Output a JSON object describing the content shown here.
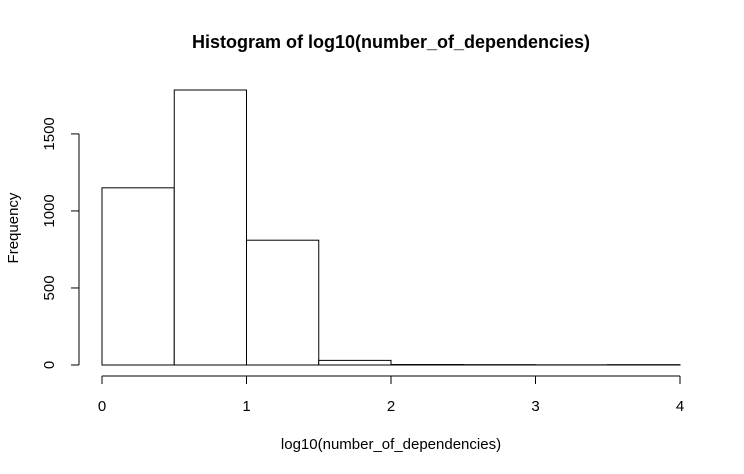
{
  "chart_data": {
    "type": "bar",
    "title": "Histogram of log10(number_of_dependencies)",
    "xlabel": "log10(number_of_dependencies)",
    "ylabel": "Frequency",
    "bins": [
      {
        "start": 0.0,
        "end": 0.5,
        "value": 1150
      },
      {
        "start": 0.5,
        "end": 1.0,
        "value": 1785
      },
      {
        "start": 1.0,
        "end": 1.5,
        "value": 810
      },
      {
        "start": 1.5,
        "end": 2.0,
        "value": 30
      },
      {
        "start": 2.0,
        "end": 2.5,
        "value": 3
      },
      {
        "start": 2.5,
        "end": 3.0,
        "value": 2
      },
      {
        "start": 3.0,
        "end": 3.5,
        "value": 1
      },
      {
        "start": 3.5,
        "end": 4.0,
        "value": 2
      }
    ],
    "xlim": [
      0,
      4
    ],
    "ylim": [
      0,
      1785
    ],
    "xticks": [
      0,
      1,
      2,
      3,
      4
    ],
    "xtick_labels": [
      "0",
      "1",
      "2",
      "3",
      "4"
    ],
    "yticks": [
      0,
      500,
      1000,
      1500
    ],
    "ytick_labels": [
      "0",
      "500",
      "1000",
      "1500"
    ],
    "grid": false,
    "legend": "none",
    "colors": {
      "bar_fill": "#ffffff",
      "bar_stroke": "#000000"
    }
  }
}
